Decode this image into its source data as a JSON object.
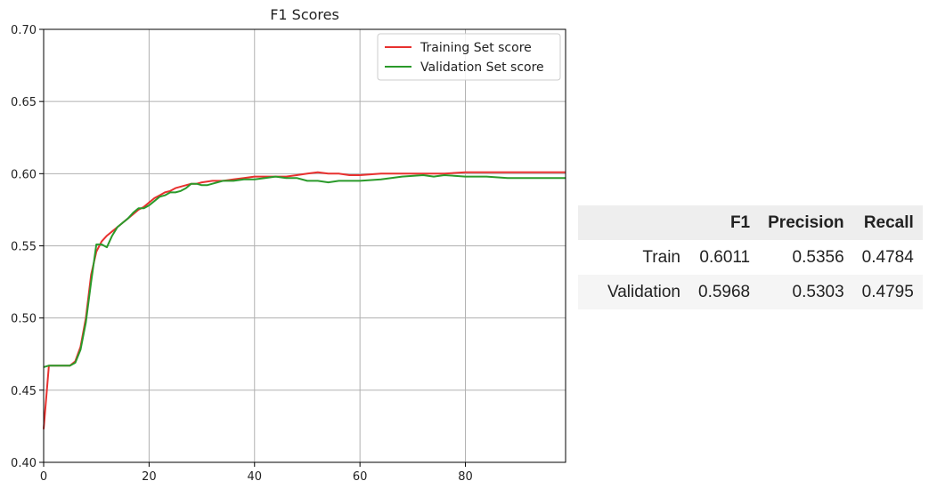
{
  "chart_data": {
    "type": "line",
    "title": "F1 Scores",
    "xlabel": "",
    "ylabel": "",
    "xlim": [
      0,
      99
    ],
    "ylim": [
      0.4,
      0.7
    ],
    "xticks": [
      "0",
      "20",
      "40",
      "60",
      "80"
    ],
    "yticks": [
      "0.40",
      "0.45",
      "0.50",
      "0.55",
      "0.60",
      "0.65",
      "0.70"
    ],
    "grid": true,
    "legend_position": "top-right",
    "series": [
      {
        "name": "Training Set score",
        "color": "#e8312f",
        "x": [
          0,
          1,
          2,
          3,
          4,
          5,
          6,
          7,
          8,
          9,
          10,
          11,
          12,
          13,
          14,
          15,
          16,
          17,
          18,
          19,
          20,
          21,
          22,
          23,
          24,
          25,
          26,
          27,
          28,
          29,
          30,
          32,
          34,
          36,
          38,
          40,
          42,
          44,
          46,
          48,
          50,
          52,
          54,
          56,
          58,
          60,
          64,
          68,
          72,
          76,
          80,
          84,
          88,
          92,
          96,
          99
        ],
        "values": [
          0.423,
          0.467,
          0.467,
          0.467,
          0.467,
          0.467,
          0.47,
          0.48,
          0.5,
          0.53,
          0.546,
          0.553,
          0.557,
          0.56,
          0.563,
          0.566,
          0.569,
          0.572,
          0.575,
          0.577,
          0.58,
          0.583,
          0.585,
          0.587,
          0.588,
          0.59,
          0.591,
          0.592,
          0.593,
          0.593,
          0.594,
          0.595,
          0.595,
          0.596,
          0.597,
          0.598,
          0.598,
          0.598,
          0.598,
          0.599,
          0.6,
          0.601,
          0.6,
          0.6,
          0.599,
          0.599,
          0.6,
          0.6,
          0.6,
          0.6,
          0.601,
          0.601,
          0.601,
          0.601,
          0.601,
          0.601
        ]
      },
      {
        "name": "Validation Set score",
        "color": "#2a9a2a",
        "x": [
          0,
          1,
          2,
          3,
          4,
          5,
          6,
          7,
          8,
          9,
          10,
          11,
          12,
          13,
          14,
          15,
          16,
          17,
          18,
          19,
          20,
          21,
          22,
          23,
          24,
          25,
          26,
          27,
          28,
          29,
          30,
          31,
          32,
          34,
          36,
          38,
          40,
          42,
          44,
          46,
          48,
          50,
          52,
          54,
          56,
          58,
          60,
          64,
          68,
          72,
          74,
          76,
          80,
          84,
          88,
          92,
          96,
          99
        ],
        "values": [
          0.466,
          0.467,
          0.467,
          0.467,
          0.467,
          0.467,
          0.469,
          0.478,
          0.497,
          0.525,
          0.551,
          0.551,
          0.549,
          0.557,
          0.563,
          0.566,
          0.569,
          0.573,
          0.576,
          0.576,
          0.578,
          0.581,
          0.584,
          0.585,
          0.587,
          0.587,
          0.588,
          0.59,
          0.593,
          0.593,
          0.592,
          0.592,
          0.593,
          0.595,
          0.595,
          0.596,
          0.596,
          0.597,
          0.598,
          0.597,
          0.597,
          0.595,
          0.595,
          0.594,
          0.595,
          0.595,
          0.595,
          0.596,
          0.598,
          0.599,
          0.598,
          0.599,
          0.598,
          0.598,
          0.597,
          0.597,
          0.597,
          0.597
        ]
      }
    ]
  },
  "stats_table": {
    "columns": [
      "F1",
      "Precision",
      "Recall"
    ],
    "rows": [
      {
        "label": "Train",
        "values": [
          "0.6011",
          "0.5356",
          "0.4784"
        ]
      },
      {
        "label": "Validation",
        "values": [
          "0.5968",
          "0.5303",
          "0.4795"
        ]
      }
    ]
  }
}
